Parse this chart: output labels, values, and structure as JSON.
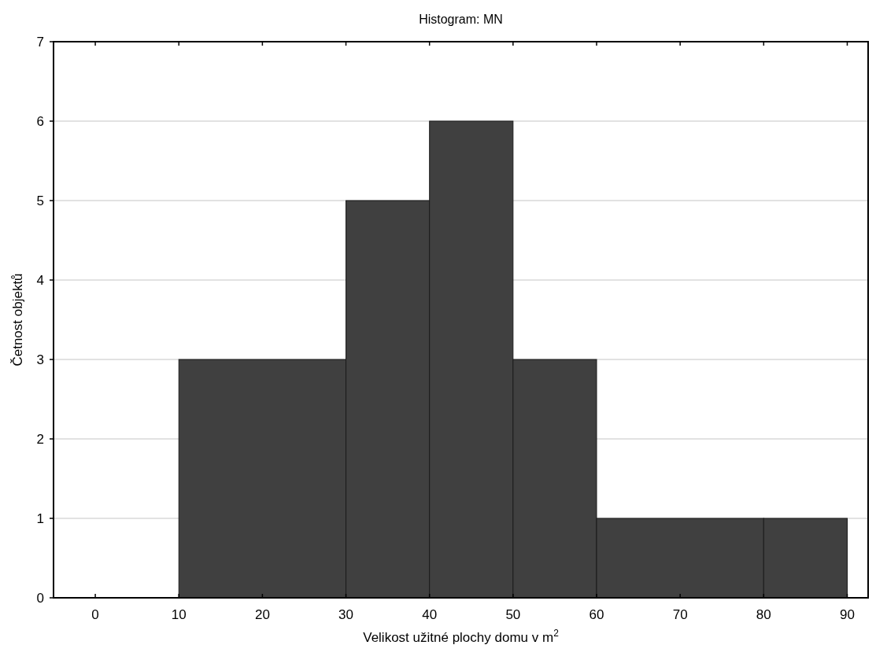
{
  "chart_data": {
    "type": "histogram",
    "title": "Histogram: MN",
    "xlabel": "Velikost užitné plochy domu v m$^{2}$",
    "ylabel": "Četnost objektů",
    "bins": [
      10,
      30,
      40,
      50,
      60,
      80,
      90
    ],
    "values": [
      3,
      5,
      6,
      3,
      1,
      1
    ],
    "color": "#404040",
    "xlim": [
      -5,
      92.5
    ],
    "xticks": [
      0,
      10,
      20,
      30,
      40,
      50,
      60,
      70,
      80,
      90
    ],
    "ylim": [
      0,
      7
    ],
    "yticks": [
      0,
      1,
      2,
      3,
      4,
      5,
      6,
      7
    ],
    "grid": "y"
  }
}
